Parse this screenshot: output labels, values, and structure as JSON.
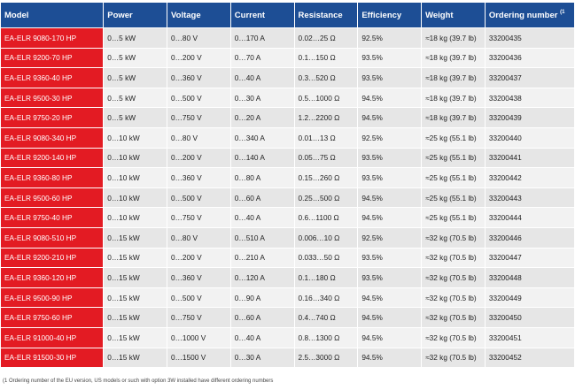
{
  "table": {
    "headers": {
      "model": "Model",
      "power": "Power",
      "voltage": "Voltage",
      "current": "Current",
      "resistance": "Resistance",
      "efficiency": "Efficiency",
      "weight": "Weight",
      "ordering": "Ordering number",
      "ordering_note_marker": "(1"
    },
    "rows": [
      {
        "model": "EA-ELR 9080-170 HP",
        "power": "0…5 kW",
        "voltage": "0…80 V",
        "current": "0…170 A",
        "resistance": "0.02…25 Ω",
        "efficiency": "92.5%",
        "weight": "≈18 kg (39.7 lb)",
        "ordering": "33200435"
      },
      {
        "model": "EA-ELR 9200-70 HP",
        "power": "0…5 kW",
        "voltage": "0…200 V",
        "current": "0…70 A",
        "resistance": "0.1…150 Ω",
        "efficiency": "93.5%",
        "weight": "≈18 kg (39.7 lb)",
        "ordering": "33200436"
      },
      {
        "model": "EA-ELR 9360-40 HP",
        "power": "0…5 kW",
        "voltage": "0…360 V",
        "current": "0…40 A",
        "resistance": "0.3…520 Ω",
        "efficiency": "93.5%",
        "weight": "≈18 kg (39.7 lb)",
        "ordering": "33200437"
      },
      {
        "model": "EA-ELR 9500-30 HP",
        "power": "0…5 kW",
        "voltage": "0…500 V",
        "current": "0…30 A",
        "resistance": "0.5…1000 Ω",
        "efficiency": "94.5%",
        "weight": "≈18 kg (39.7 lb)",
        "ordering": "33200438"
      },
      {
        "model": "EA-ELR 9750-20 HP",
        "power": "0…5 kW",
        "voltage": "0…750 V",
        "current": "0…20 A",
        "resistance": "1.2…2200 Ω",
        "efficiency": "94.5%",
        "weight": "≈18 kg (39.7 lb)",
        "ordering": "33200439"
      },
      {
        "model": "EA-ELR 9080-340 HP",
        "power": "0…10 kW",
        "voltage": "0…80 V",
        "current": "0…340 A",
        "resistance": "0.01…13 Ω",
        "efficiency": "92.5%",
        "weight": "≈25 kg (55.1 lb)",
        "ordering": "33200440"
      },
      {
        "model": "EA-ELR 9200-140 HP",
        "power": "0…10 kW",
        "voltage": "0…200 V",
        "current": "0…140 A",
        "resistance": "0.05…75 Ω",
        "efficiency": "93.5%",
        "weight": "≈25 kg (55.1 lb)",
        "ordering": "33200441"
      },
      {
        "model": "EA-ELR 9360-80 HP",
        "power": "0…10 kW",
        "voltage": "0…360 V",
        "current": "0…80 A",
        "resistance": "0.15…260 Ω",
        "efficiency": "93.5%",
        "weight": "≈25 kg (55.1 lb)",
        "ordering": "33200442"
      },
      {
        "model": "EA-ELR 9500-60 HP",
        "power": "0…10 kW",
        "voltage": "0…500 V",
        "current": "0…60 A",
        "resistance": "0.25…500 Ω",
        "efficiency": "94.5%",
        "weight": "≈25 kg (55.1 lb)",
        "ordering": "33200443"
      },
      {
        "model": "EA-ELR 9750-40 HP",
        "power": "0…10 kW",
        "voltage": "0…750 V",
        "current": "0…40 A",
        "resistance": "0.6…1100 Ω",
        "efficiency": "94.5%",
        "weight": "≈25 kg (55.1 lb)",
        "ordering": "33200444"
      },
      {
        "model": "EA-ELR 9080-510 HP",
        "power": "0…15 kW",
        "voltage": "0…80 V",
        "current": "0…510 A",
        "resistance": "0.006…10 Ω",
        "efficiency": "92.5%",
        "weight": "≈32 kg (70.5 lb)",
        "ordering": "33200446"
      },
      {
        "model": "EA-ELR 9200-210 HP",
        "power": "0…15 kW",
        "voltage": "0…200 V",
        "current": "0…210 A",
        "resistance": "0.033…50 Ω",
        "efficiency": "93.5%",
        "weight": "≈32 kg (70.5 lb)",
        "ordering": "33200447"
      },
      {
        "model": "EA-ELR 9360-120 HP",
        "power": "0…15 kW",
        "voltage": "0…360 V",
        "current": "0…120 A",
        "resistance": "0.1…180 Ω",
        "efficiency": "93.5%",
        "weight": "≈32 kg (70.5 lb)",
        "ordering": "33200448"
      },
      {
        "model": "EA-ELR 9500-90 HP",
        "power": "0…15 kW",
        "voltage": "0…500 V",
        "current": "0…90 A",
        "resistance": "0.16…340 Ω",
        "efficiency": "94.5%",
        "weight": "≈32 kg (70.5 lb)",
        "ordering": "33200449"
      },
      {
        "model": "EA-ELR 9750-60 HP",
        "power": "0…15 kW",
        "voltage": "0…750 V",
        "current": "0…60 A",
        "resistance": "0.4…740 Ω",
        "efficiency": "94.5%",
        "weight": "≈32 kg (70.5 lb)",
        "ordering": "33200450"
      },
      {
        "model": "EA-ELR 91000-40 HP",
        "power": "0…15 kW",
        "voltage": "0…1000 V",
        "current": "0…40 A",
        "resistance": "0.8…1300 Ω",
        "efficiency": "94.5%",
        "weight": "≈32 kg (70.5 lb)",
        "ordering": "33200451"
      },
      {
        "model": "EA-ELR 91500-30 HP",
        "power": "0…15 kW",
        "voltage": "0…1500 V",
        "current": "0…30 A",
        "resistance": "2.5…3000 Ω",
        "efficiency": "94.5%",
        "weight": "≈32 kg (70.5 lb)",
        "ordering": "33200452"
      }
    ]
  },
  "footnote": "(1 Ordering number of the EU version, US models or such with option 3W installed have different ordering numbers",
  "colors": {
    "header_bg": "#1d4e95",
    "model_bg": "#e31b23",
    "row_odd": "#e6e6e6",
    "row_even": "#f2f2f2"
  }
}
